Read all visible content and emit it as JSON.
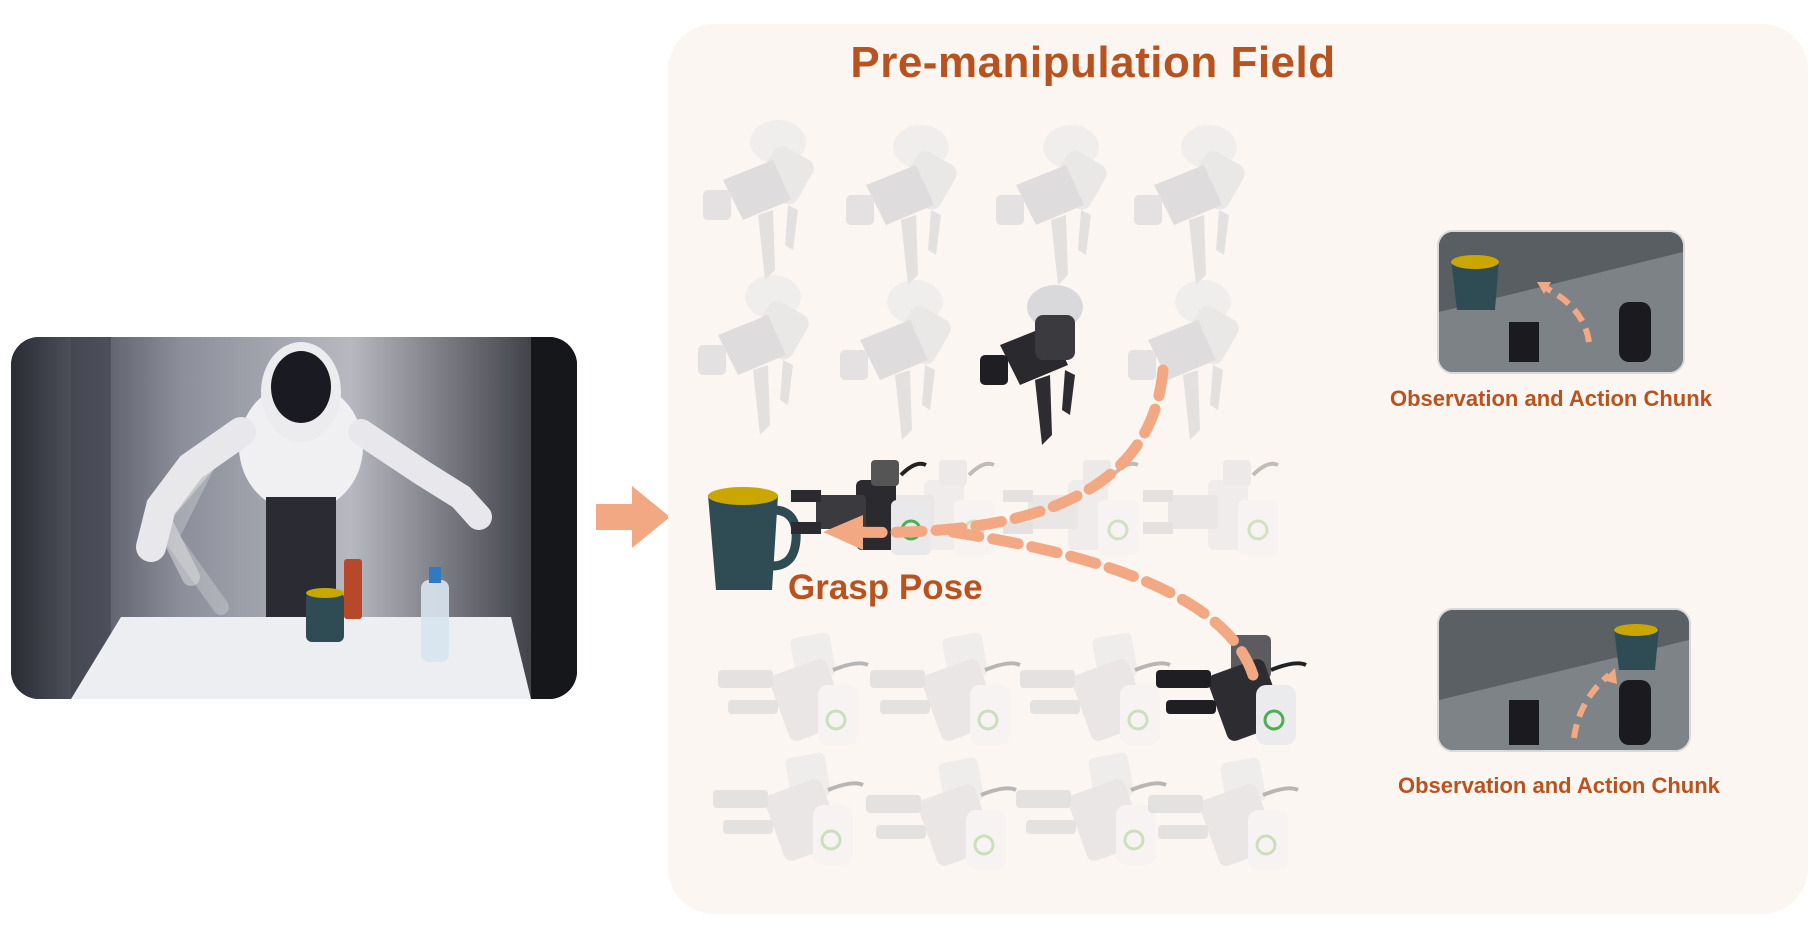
{
  "title": "Pre-manipulation Field",
  "grasp_label": "Grasp Pose",
  "observation_top_label": "Observation and Action Chunk",
  "observation_bottom_label": "Observation and Action Chunk",
  "colors": {
    "accent": "#b8531f",
    "arrow": "#f2a882",
    "panel_bg": "#fcf6f2"
  },
  "icons": {
    "arrow": "right-arrow-icon",
    "gripper": "robot-gripper-icon",
    "cup": "cup-icon",
    "robot": "humanoid-robot-icon"
  }
}
